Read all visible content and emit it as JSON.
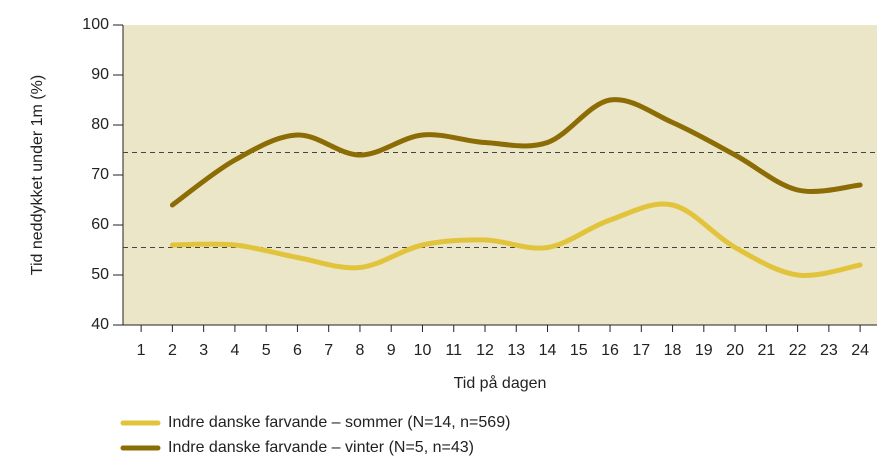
{
  "chart_data": {
    "type": "line",
    "xlabel": "Tid på dagen",
    "ylabel": "Tid neddykket under 1m (%)",
    "x": [
      2,
      4,
      6,
      8,
      10,
      12,
      14,
      16,
      18,
      20,
      22,
      24
    ],
    "series": [
      {
        "name": "Indre danske farvande – sommer (N=14, n=569)",
        "color": "#e2c43c",
        "values": [
          56,
          56,
          53.5,
          51.5,
          56,
          57,
          55.5,
          61,
          64,
          55.5,
          50,
          52
        ]
      },
      {
        "name": "Indre danske farvande – vinter (N=5, n=43)",
        "color": "#8c6c05",
        "values": [
          64,
          73,
          78,
          74,
          78,
          76.5,
          76.5,
          85,
          80.5,
          74,
          67,
          68
        ]
      }
    ],
    "reference_lines": [
      74.5,
      55.5
    ],
    "xlim": [
      0.42,
      24.54
    ],
    "xticks": [
      1,
      2,
      3,
      4,
      5,
      6,
      7,
      8,
      9,
      10,
      11,
      12,
      13,
      14,
      15,
      16,
      17,
      18,
      19,
      20,
      21,
      22,
      23,
      24
    ],
    "ylim": [
      40,
      100
    ],
    "yticks": [
      40,
      50,
      60,
      70,
      80,
      90,
      100
    ],
    "plot_background": "#ece6c9"
  }
}
